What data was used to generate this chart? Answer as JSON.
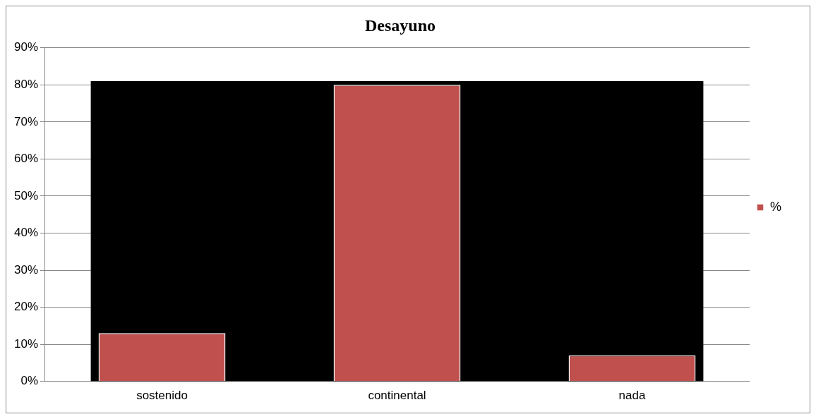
{
  "chart_data": {
    "type": "bar",
    "title": "Desayuno",
    "categories": [
      "sostenido",
      "continental",
      "nada"
    ],
    "series": [
      {
        "name": "%",
        "color": "#c0504d",
        "values": [
          13,
          80,
          7
        ]
      }
    ],
    "ylim": [
      0,
      90
    ],
    "yticks": [
      {
        "value": 0,
        "label": "0%"
      },
      {
        "value": 10,
        "label": "10%"
      },
      {
        "value": 20,
        "label": "20%"
      },
      {
        "value": 30,
        "label": "30%"
      },
      {
        "value": 40,
        "label": "40%"
      },
      {
        "value": 50,
        "label": "50%"
      },
      {
        "value": 60,
        "label": "60%"
      },
      {
        "value": 70,
        "label": "70%"
      },
      {
        "value": 80,
        "label": "80%"
      },
      {
        "value": 90,
        "label": "90%"
      }
    ],
    "bands": [
      {
        "axis": "y",
        "from": 0,
        "to": 81,
        "color": "#000000"
      }
    ],
    "grid": "y",
    "legend": "right"
  }
}
